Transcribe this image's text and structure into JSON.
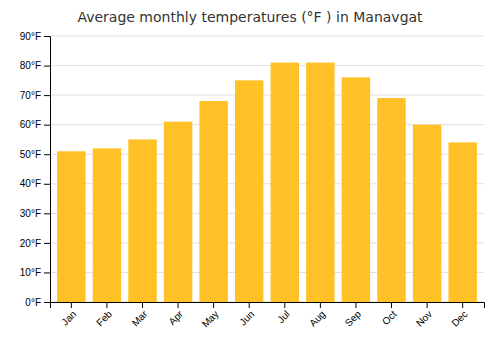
{
  "chart_data": {
    "type": "bar",
    "title": "Average monthly temperatures (°F ) in Manavgat",
    "categories": [
      "Jan",
      "Feb",
      "Mar",
      "Apr",
      "May",
      "Jun",
      "Jul",
      "Aug",
      "Sep",
      "Oct",
      "Nov",
      "Dec"
    ],
    "values": [
      51,
      52,
      55,
      61,
      68,
      75,
      81,
      81,
      76,
      69,
      60,
      54
    ],
    "color": "#FFC125",
    "ylim": [
      0,
      90
    ],
    "yticks": [
      {
        "value": 0,
        "label": "0°F"
      },
      {
        "value": 10,
        "label": "10°F"
      },
      {
        "value": 20,
        "label": "20°F"
      },
      {
        "value": 30,
        "label": "30°F"
      },
      {
        "value": 40,
        "label": "40°F"
      },
      {
        "value": 50,
        "label": "50°F"
      },
      {
        "value": 60,
        "label": "60°F"
      },
      {
        "value": 70,
        "label": "70°F"
      },
      {
        "value": 80,
        "label": "80°F"
      },
      {
        "value": 90,
        "label": "90°F"
      }
    ],
    "grid": true
  }
}
